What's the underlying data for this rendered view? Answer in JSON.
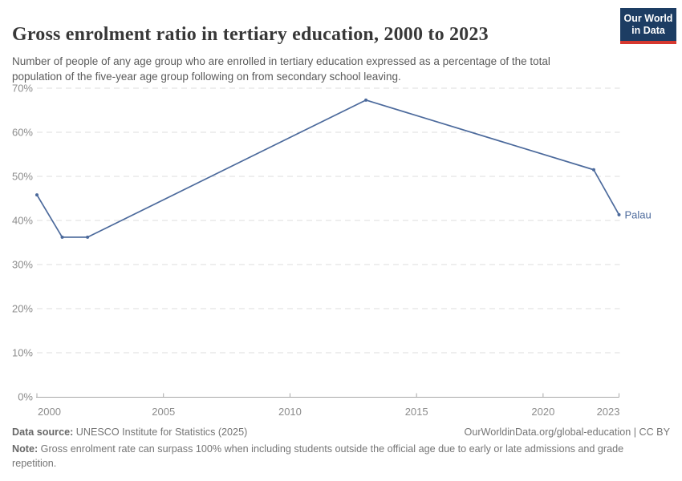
{
  "logo": {
    "line1": "Our World",
    "line2": "in Data",
    "bg_color": "#1d3d63",
    "bar_color": "#d6382f"
  },
  "header": {
    "title": "Gross enrolment ratio in tertiary education, 2000 to 2023",
    "subtitle": "Number of people of any age group who are enrolled in tertiary education expressed as a percentage of the total population of the five-year age group following on from secondary school leaving."
  },
  "chart_data": {
    "type": "line",
    "title": "Gross enrolment ratio in tertiary education, 2000 to 2023",
    "x": [
      2000,
      2001,
      2002,
      2013,
      2022,
      2023
    ],
    "series": [
      {
        "name": "Palau",
        "values": [
          45.8,
          36.2,
          36.2,
          67.3,
          51.5,
          41.3
        ],
        "color": "#4C6A9C"
      }
    ],
    "end_label": "Palau",
    "xlabel": "",
    "ylabel": "",
    "xlim": [
      2000,
      2023
    ],
    "ylim": [
      0,
      70
    ],
    "x_ticks": [
      2000,
      2005,
      2010,
      2015,
      2020,
      2023
    ],
    "y_ticks": [
      0,
      10,
      20,
      30,
      40,
      50,
      60,
      70
    ],
    "y_tick_suffix": "%",
    "grid": "horizontal-dashed",
    "legend_position": "end-of-line-label"
  },
  "footer": {
    "source_label": "Data source:",
    "source_text": " UNESCO Institute for Statistics (2025)",
    "link_text": "OurWorldinData.org/global-education | CC BY",
    "note_label": "Note:",
    "note_text": " Gross enrolment rate can surpass 100% when including students outside the official age due to early or late admissions and grade repetition."
  }
}
